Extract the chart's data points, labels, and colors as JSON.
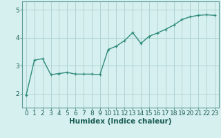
{
  "x": [
    0,
    1,
    2,
    3,
    4,
    5,
    6,
    7,
    8,
    9,
    10,
    11,
    12,
    13,
    14,
    15,
    16,
    17,
    18,
    19,
    20,
    21,
    22,
    23
  ],
  "y": [
    1.95,
    3.2,
    3.25,
    2.68,
    2.72,
    2.76,
    2.7,
    2.7,
    2.7,
    2.68,
    3.58,
    3.7,
    3.9,
    4.18,
    3.8,
    4.05,
    4.17,
    4.3,
    4.45,
    4.65,
    4.75,
    4.8,
    4.82,
    4.8
  ],
  "line_color": "#2e8b7a",
  "marker": "+",
  "marker_size": 3,
  "marker_linewidth": 0.9,
  "bg_color": "#d6f0ef",
  "grid_color": "#b0d4d2",
  "xlabel": "Humidex (Indice chaleur)",
  "xlim": [
    -0.5,
    23.5
  ],
  "ylim": [
    1.5,
    5.3
  ],
  "yticks": [
    2,
    3,
    4,
    5
  ],
  "xticks": [
    0,
    1,
    2,
    3,
    4,
    5,
    6,
    7,
    8,
    9,
    10,
    11,
    12,
    13,
    14,
    15,
    16,
    17,
    18,
    19,
    20,
    21,
    22,
    23
  ],
  "xlabel_fontsize": 7.5,
  "tick_fontsize": 6.5,
  "line_width": 1.0
}
